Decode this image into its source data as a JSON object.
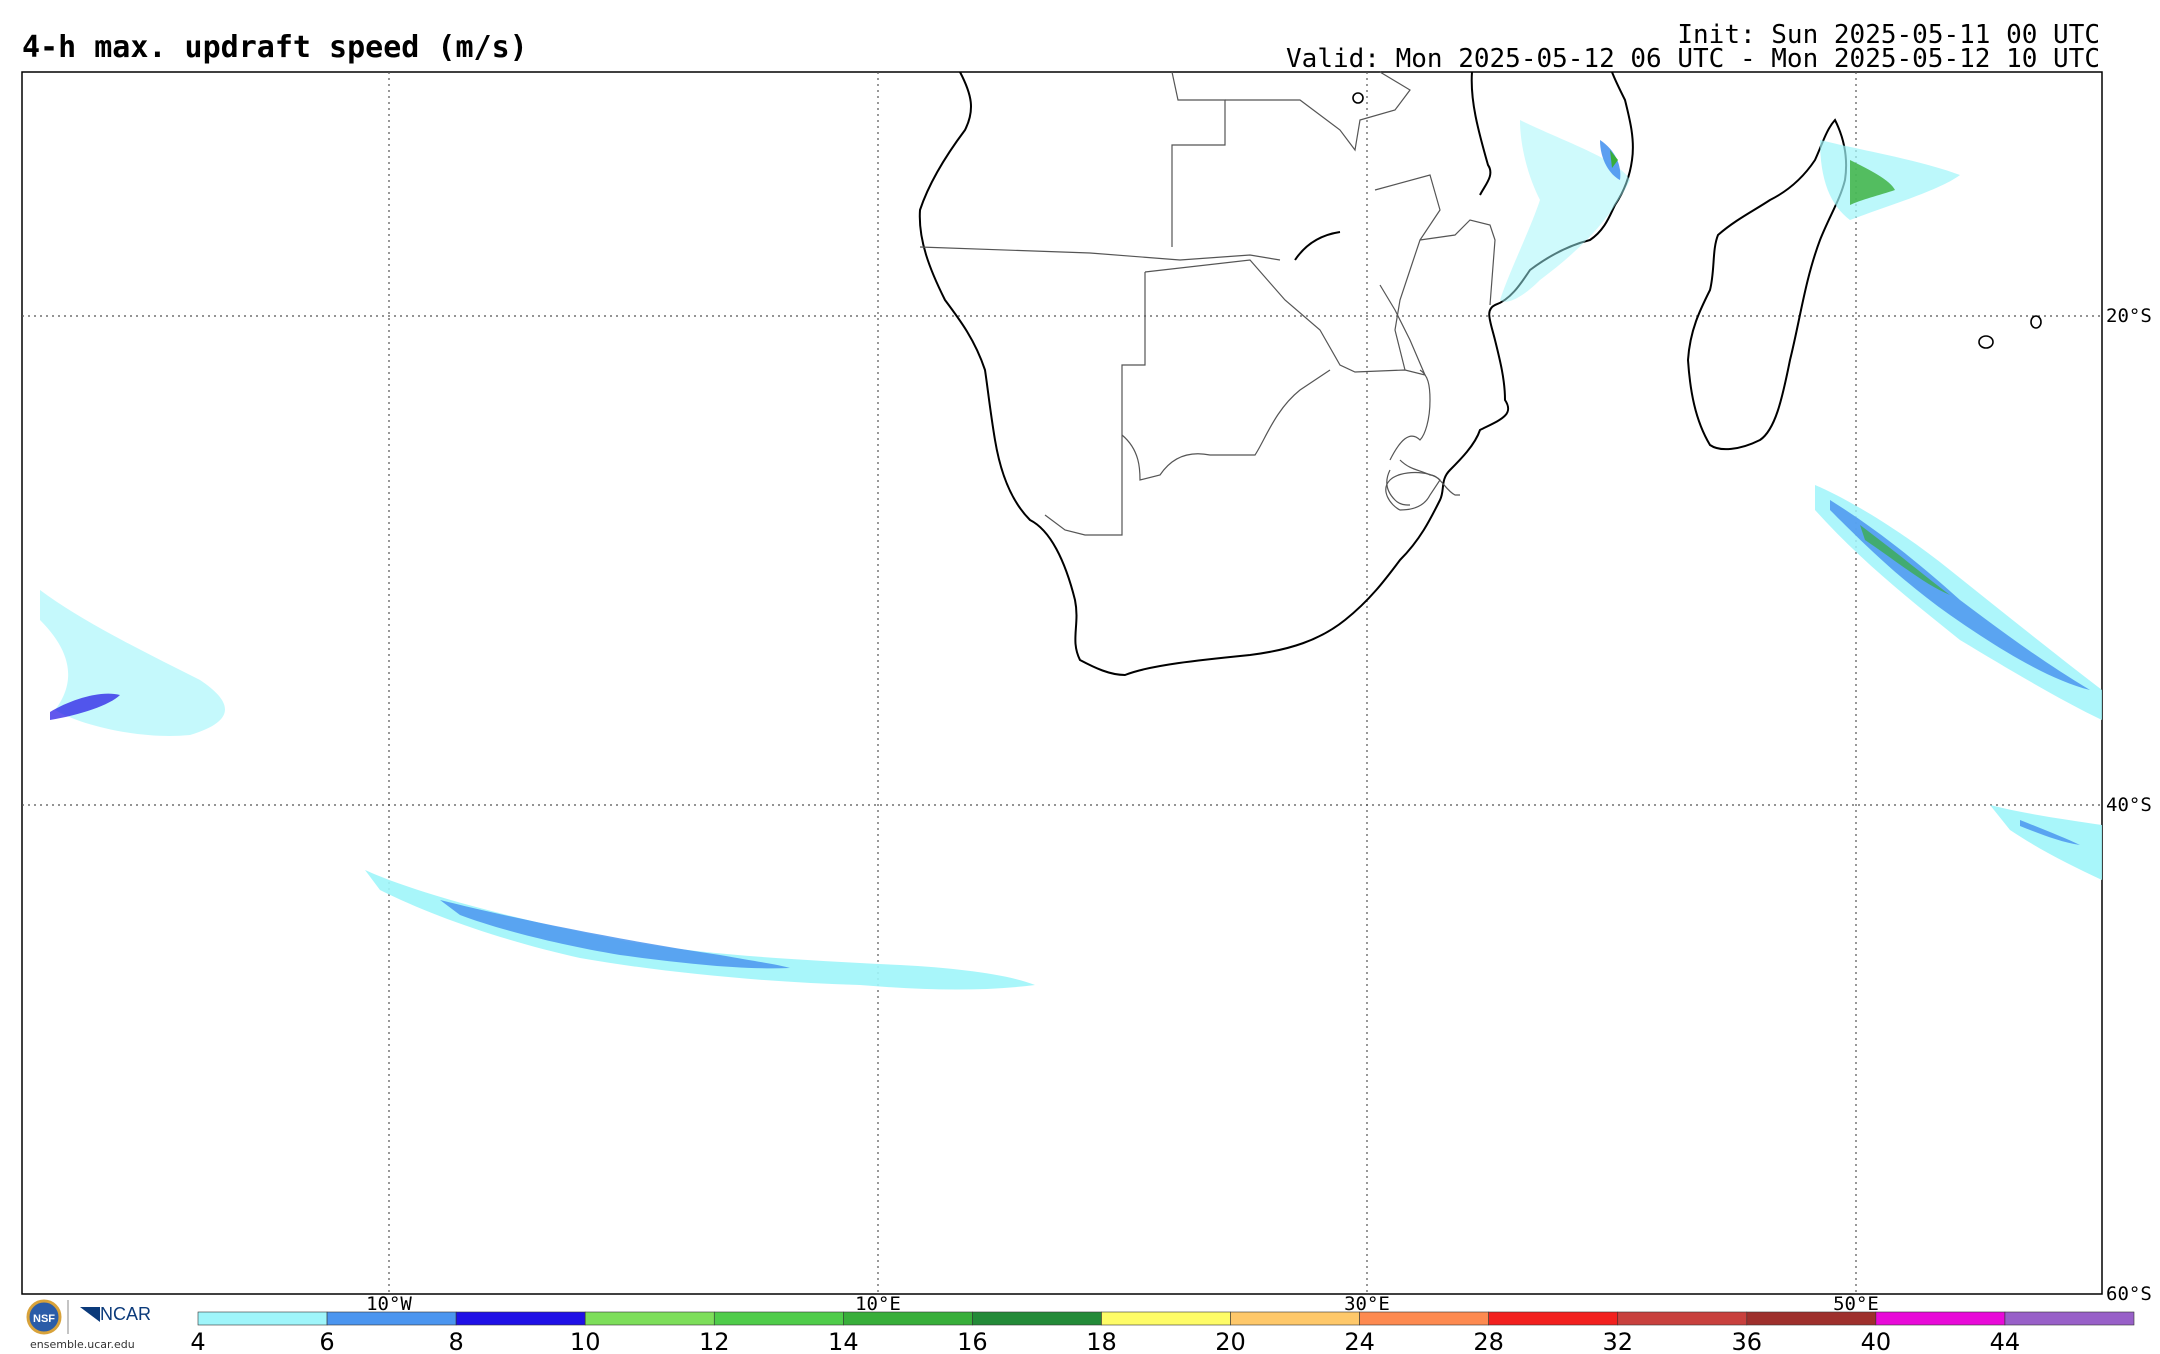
{
  "header": {
    "title": "4-h max. updraft speed (m/s)",
    "init": "Init: Sun 2025-05-11 00 UTC",
    "valid": "Valid: Mon 2025-05-12 06 UTC - Mon 2025-05-12 10 UTC"
  },
  "grid": {
    "lon_labels": [
      "10°W",
      "10°E",
      "30°E",
      "50°E"
    ],
    "lat_labels": [
      "20°S",
      "40°S",
      "60°S"
    ]
  },
  "colorbar": {
    "ticks": [
      "4",
      "6",
      "8",
      "10",
      "12",
      "14",
      "16",
      "18",
      "20",
      "24",
      "28",
      "32",
      "36",
      "40",
      "44"
    ],
    "colors": [
      "#9ff5fa",
      "#4b95ef",
      "#1f10e6",
      "#7dde5a",
      "#4fcc4a",
      "#38ae3a",
      "#238a38",
      "#fefc67",
      "#fec86a",
      "#fd8a50",
      "#f2201e",
      "#c8403d",
      "#9e2f2c",
      "#e80ad8",
      "#9860c8"
    ]
  },
  "credits": {
    "org": "NCAR",
    "url": "ensemble.ucar.edu"
  },
  "colors": {
    "map_border": "#000000",
    "gridline": "#555555",
    "coast": "#000000",
    "country": "#555555"
  }
}
